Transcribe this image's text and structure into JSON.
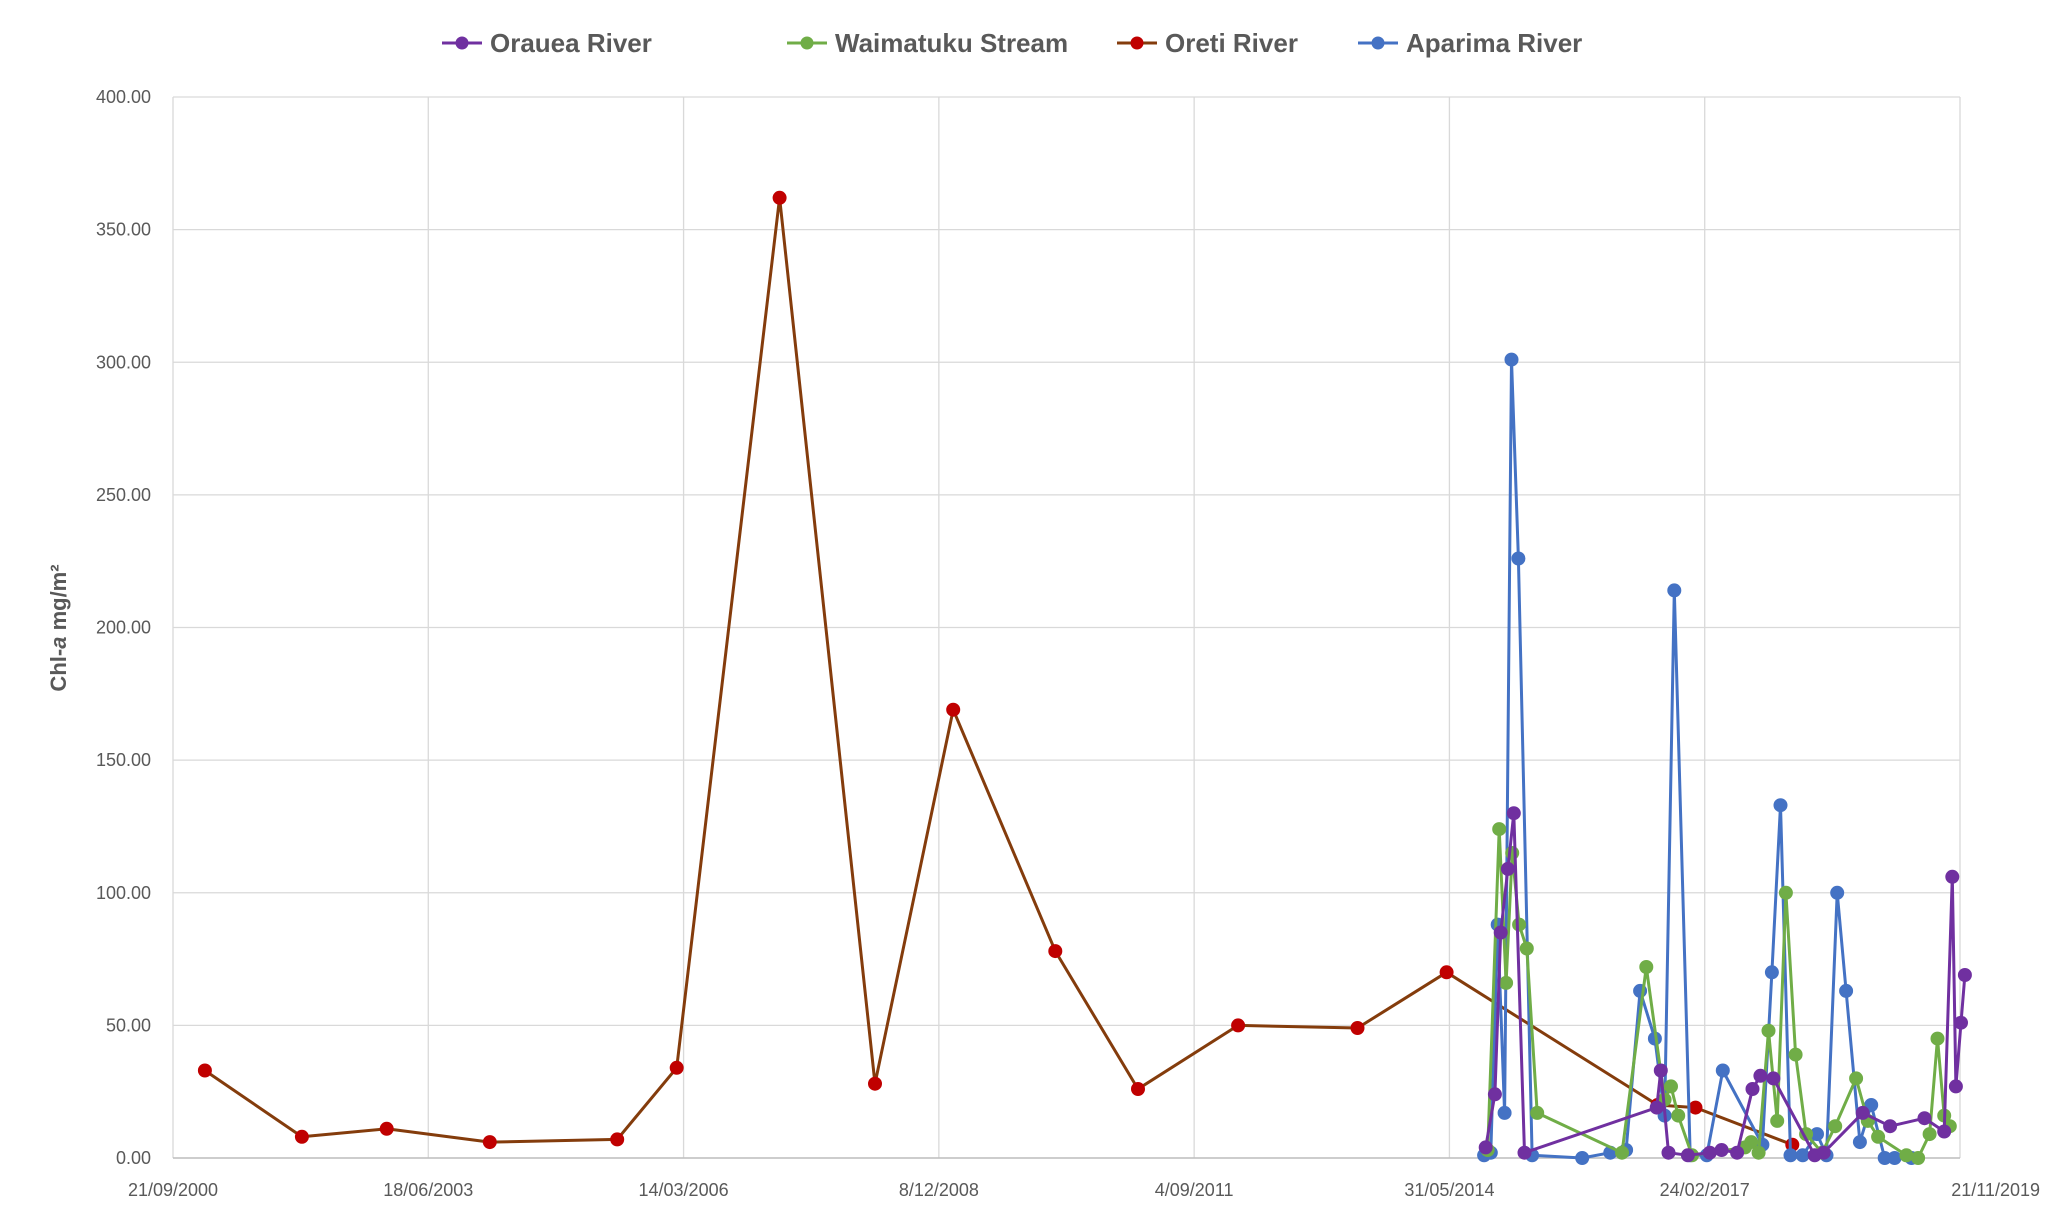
{
  "chart_data": {
    "type": "line",
    "title": "",
    "xlabel": "",
    "ylabel": {
      "prefix": "Chl-",
      "italic": "a",
      "suffix": " mg/m²"
    },
    "xlim": [
      "2000-09-21",
      "2019-11-21"
    ],
    "ylim": [
      0,
      400
    ],
    "grid": true,
    "legend_position": "top",
    "x_ticks": [
      "21/09/2000",
      "18/06/2003",
      "14/03/2006",
      "8/12/2008",
      "4/09/2011",
      "31/05/2014",
      "24/02/2017",
      "21/11/2019"
    ],
    "y_ticks": [
      "0.00",
      "50.00",
      "100.00",
      "150.00",
      "200.00",
      "250.00",
      "300.00",
      "350.00",
      "400.00"
    ],
    "series": [
      {
        "name": "Oreti River",
        "color": "#843c0c",
        "marker_color": "#c00000",
        "points": [
          [
            "2001-01-24",
            33
          ],
          [
            "2002-02-08",
            8
          ],
          [
            "2003-01-06",
            11
          ],
          [
            "2004-02-14",
            6
          ],
          [
            "2005-06-27",
            7
          ],
          [
            "2006-02-15",
            34
          ],
          [
            "2007-03-25",
            362
          ],
          [
            "2008-04-02",
            28
          ],
          [
            "2009-02-02",
            169
          ],
          [
            "2010-03-09",
            78
          ],
          [
            "2011-01-27",
            26
          ],
          [
            "2012-02-23",
            50
          ],
          [
            "2013-06-05",
            49
          ],
          [
            "2014-05-20",
            70
          ],
          [
            "2016-08-23",
            20
          ],
          [
            "2017-01-19",
            19
          ],
          [
            "2018-02-02",
            5
          ]
        ]
      },
      {
        "name": "Aparima River",
        "color": "#4472c4",
        "marker_color": "#4472c4",
        "points": [
          [
            "2014-10-14",
            1
          ],
          [
            "2014-11-09",
            2
          ],
          [
            "2014-12-06",
            88
          ],
          [
            "2015-01-02",
            17
          ],
          [
            "2015-01-29",
            301
          ],
          [
            "2015-02-25",
            226
          ],
          [
            "2015-04-20",
            1
          ],
          [
            "2015-11-02",
            0
          ],
          [
            "2016-02-20",
            2
          ],
          [
            "2016-04-22",
            3
          ],
          [
            "2016-06-16",
            63
          ],
          [
            "2016-08-13",
            45
          ],
          [
            "2016-09-20",
            16
          ],
          [
            "2016-10-28",
            214
          ],
          [
            "2016-12-29",
            1
          ],
          [
            "2017-03-04",
            1
          ],
          [
            "2017-05-06",
            33
          ],
          [
            "2017-10-08",
            5
          ],
          [
            "2017-11-14",
            70
          ],
          [
            "2017-12-18",
            133
          ],
          [
            "2018-01-26",
            1
          ],
          [
            "2018-03-15",
            1
          ],
          [
            "2018-05-10",
            9
          ],
          [
            "2018-06-16",
            1
          ],
          [
            "2018-07-28",
            100
          ],
          [
            "2018-09-01",
            63
          ],
          [
            "2018-10-25",
            6
          ],
          [
            "2018-12-08",
            20
          ],
          [
            "2019-01-30",
            0
          ],
          [
            "2019-03-10",
            0
          ],
          [
            "2019-05-15",
            0
          ]
        ]
      },
      {
        "name": "Waimatuku Stream",
        "color": "#70ad47",
        "marker_color": "#70ad47",
        "points": [
          [
            "2014-10-28",
            3
          ],
          [
            "2014-12-12",
            124
          ],
          [
            "2015-01-08",
            66
          ],
          [
            "2015-02-01",
            115
          ],
          [
            "2015-02-28",
            88
          ],
          [
            "2015-03-30",
            79
          ],
          [
            "2015-05-10",
            17
          ],
          [
            "2016-04-06",
            2
          ],
          [
            "2016-07-10",
            72
          ],
          [
            "2016-09-20",
            22
          ],
          [
            "2016-10-15",
            27
          ],
          [
            "2016-11-12",
            16
          ],
          [
            "2017-01-05",
            1
          ],
          [
            "2017-08-01",
            4
          ],
          [
            "2017-08-25",
            6
          ],
          [
            "2017-09-23",
            2
          ],
          [
            "2017-11-01",
            48
          ],
          [
            "2017-12-05",
            14
          ],
          [
            "2018-01-08",
            100
          ],
          [
            "2018-02-15",
            39
          ],
          [
            "2018-03-28",
            9
          ],
          [
            "2018-05-30",
            2
          ],
          [
            "2018-07-20",
            12
          ],
          [
            "2018-10-10",
            30
          ],
          [
            "2018-11-25",
            14
          ],
          [
            "2019-01-04",
            8
          ],
          [
            "2019-04-25",
            1
          ],
          [
            "2019-06-10",
            0
          ],
          [
            "2019-07-25",
            9
          ],
          [
            "2019-08-25",
            45
          ],
          [
            "2019-09-20",
            16
          ],
          [
            "2019-10-12",
            12
          ]
        ]
      },
      {
        "name": "Orauea River",
        "color": "#7030a0",
        "marker_color": "#7030a0",
        "points": [
          [
            "2014-10-20",
            4
          ],
          [
            "2014-11-25",
            24
          ],
          [
            "2014-12-18",
            85
          ],
          [
            "2015-01-15",
            109
          ],
          [
            "2015-02-07",
            130
          ],
          [
            "2015-03-21",
            2
          ],
          [
            "2016-08-20",
            19
          ],
          [
            "2016-09-05",
            33
          ],
          [
            "2016-10-05",
            2
          ],
          [
            "2016-12-20",
            1
          ],
          [
            "2017-03-16",
            2
          ],
          [
            "2017-05-01",
            3
          ],
          [
            "2017-07-01",
            2
          ],
          [
            "2017-08-30",
            26
          ],
          [
            "2017-09-30",
            31
          ],
          [
            "2017-11-20",
            30
          ],
          [
            "2018-05-01",
            1
          ],
          [
            "2018-06-05",
            2
          ],
          [
            "2018-11-05",
            17
          ],
          [
            "2019-02-20",
            12
          ],
          [
            "2019-07-05",
            15
          ],
          [
            "2019-09-20",
            10
          ],
          [
            "2019-10-22",
            106
          ],
          [
            "2019-11-05",
            27
          ],
          [
            "2019-11-25",
            51
          ],
          [
            "2019-12-10",
            69
          ]
        ]
      }
    ],
    "legend_order": [
      "Orauea River",
      "Waimatuku Stream",
      "Oreti River",
      "Aparima River"
    ]
  }
}
